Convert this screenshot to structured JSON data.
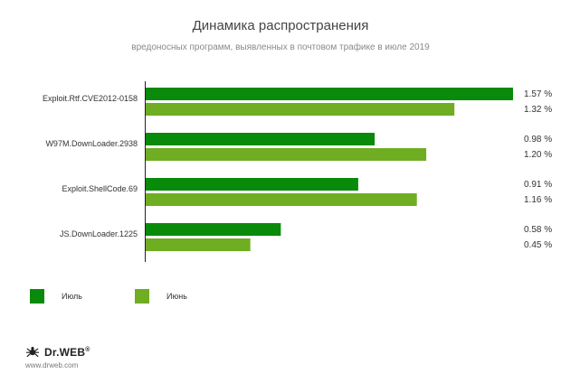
{
  "header": {
    "title": "Динамика распространения",
    "subtitle": "вредоносных программ, выявленных в почтовом трафике в июле 2019"
  },
  "colors": {
    "series_1": "#0a8a0a",
    "series_2": "#6fad22"
  },
  "chart_data": {
    "type": "bar",
    "orientation": "horizontal",
    "categories": [
      "Exploit.Rtf.CVE2012-0158",
      "W97M.DownLoader.2938",
      "Exploit.ShellCode.69",
      "JS.DownLoader.1225"
    ],
    "series": [
      {
        "name": "Июль",
        "values": [
          1.57,
          0.98,
          0.91,
          0.58
        ],
        "labels": [
          "1.57 %",
          "0.98 %",
          "0.91 %",
          "0.58 %"
        ]
      },
      {
        "name": "Июнь",
        "values": [
          1.32,
          1.2,
          1.16,
          0.45
        ],
        "labels": [
          "1.32 %",
          "1.20 %",
          "1.16 %",
          "0.45 %"
        ]
      }
    ],
    "xlim": [
      0,
      1.57
    ],
    "grid": false,
    "legend": "bottom-left"
  },
  "footer": {
    "brand": "Dr.WEB",
    "brand_mark": "®",
    "logo_icon": "spider-icon",
    "website": "www.drweb.com"
  }
}
